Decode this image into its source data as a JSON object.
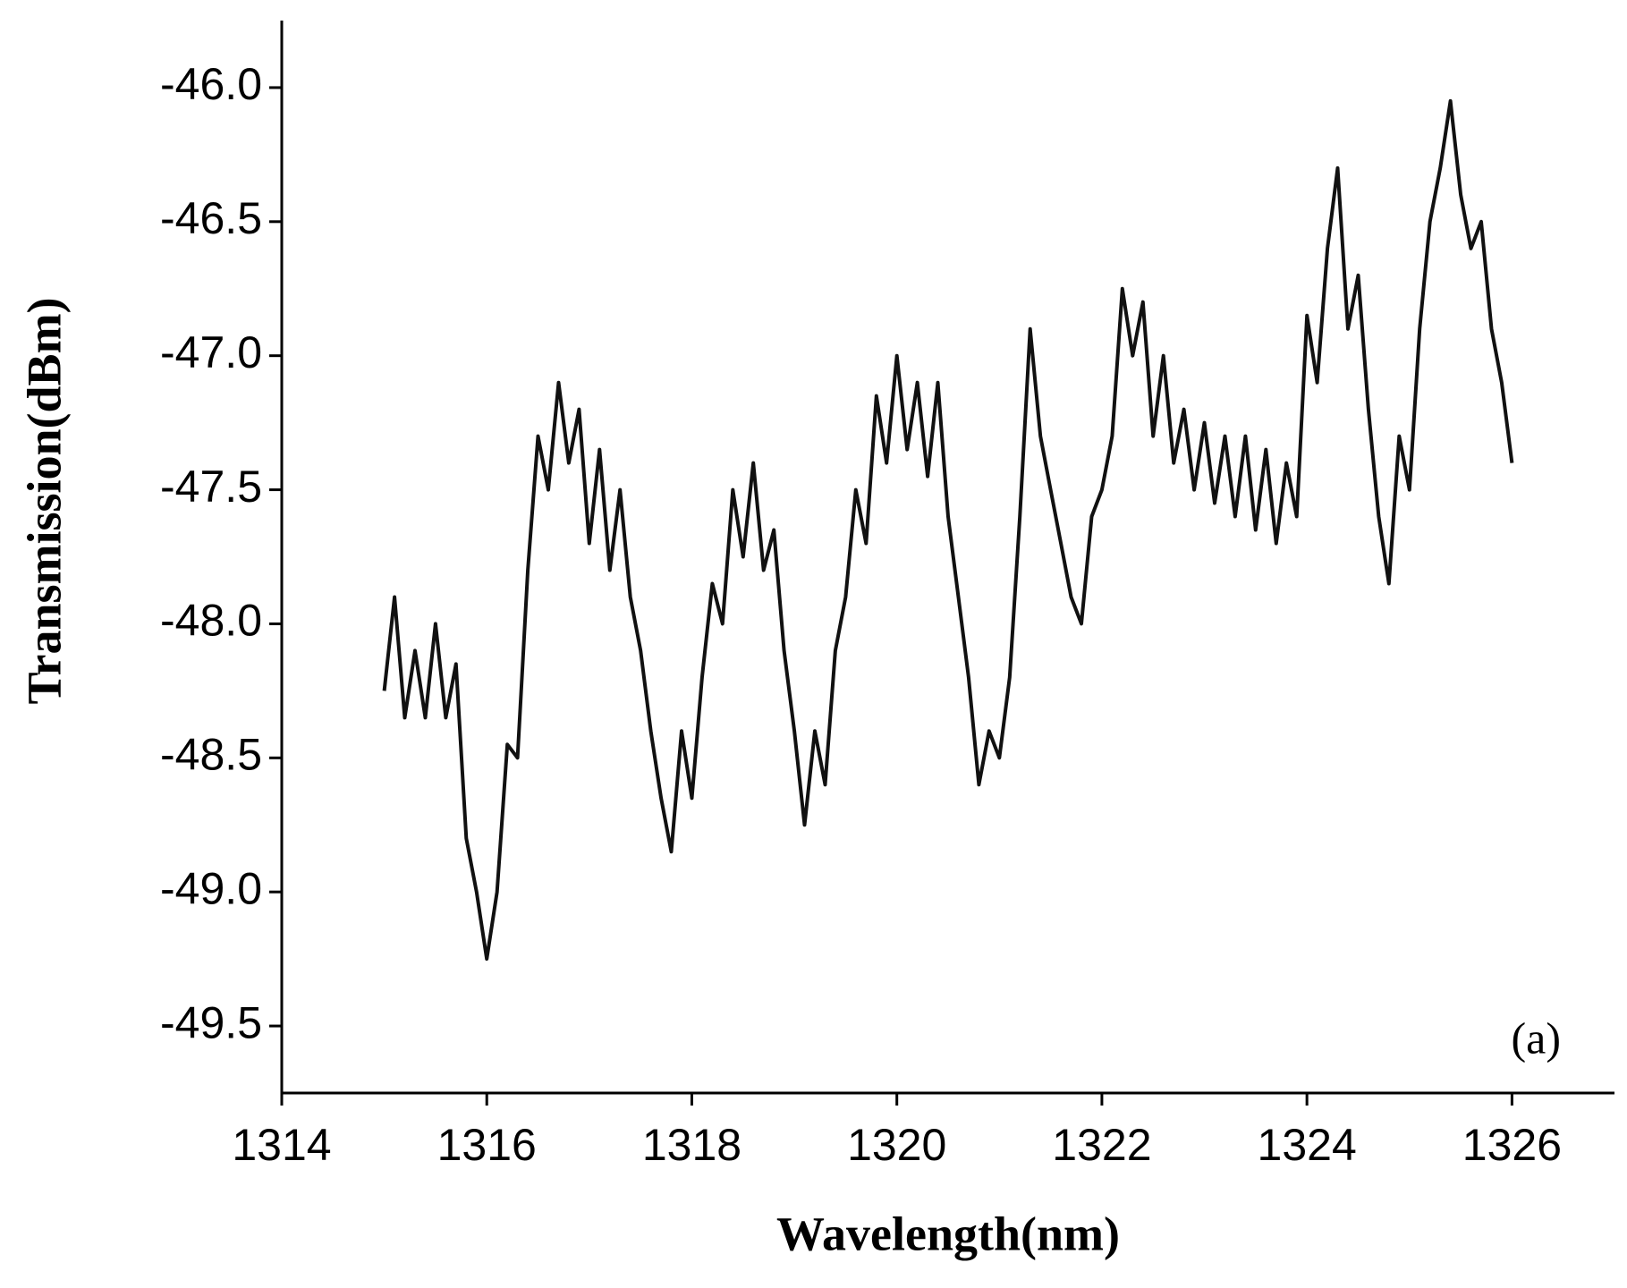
{
  "chart_data": {
    "type": "line",
    "xlabel": "Wavelength(nm)",
    "ylabel": "Transmission(dBm)",
    "annotation": "(a)",
    "color": "#111111",
    "xlim": [
      1314,
      1327
    ],
    "xticks": [
      1314,
      1316,
      1318,
      1320,
      1322,
      1324,
      1326
    ],
    "ylim": [
      -49.75,
      -45.75
    ],
    "yticks": [
      {
        "value": -49.5,
        "label": "-49.5"
      },
      {
        "value": -49.0,
        "label": "-49.0"
      },
      {
        "value": -48.5,
        "label": "-48.5"
      },
      {
        "value": -48.0,
        "label": "-48.0"
      },
      {
        "value": -47.5,
        "label": "-47.5"
      },
      {
        "value": -47.0,
        "label": "-47.0"
      },
      {
        "value": -46.5,
        "label": "-46.5"
      },
      {
        "value": -46.0,
        "label": "-46.0"
      }
    ],
    "x": [
      1315.0,
      1315.1,
      1315.2,
      1315.3,
      1315.4,
      1315.5,
      1315.6,
      1315.7,
      1315.8,
      1315.9,
      1316.0,
      1316.1,
      1316.2,
      1316.3,
      1316.4,
      1316.5,
      1316.6,
      1316.7,
      1316.8,
      1316.9,
      1317.0,
      1317.1,
      1317.2,
      1317.3,
      1317.4,
      1317.5,
      1317.6,
      1317.7,
      1317.8,
      1317.9,
      1318.0,
      1318.1,
      1318.2,
      1318.3,
      1318.4,
      1318.5,
      1318.6,
      1318.7,
      1318.8,
      1318.9,
      1319.0,
      1319.1,
      1319.2,
      1319.3,
      1319.4,
      1319.5,
      1319.6,
      1319.7,
      1319.8,
      1319.9,
      1320.0,
      1320.1,
      1320.2,
      1320.3,
      1320.4,
      1320.5,
      1320.6,
      1320.7,
      1320.8,
      1320.9,
      1321.0,
      1321.1,
      1321.2,
      1321.3,
      1321.4,
      1321.5,
      1321.6,
      1321.7,
      1321.8,
      1321.9,
      1322.0,
      1322.1,
      1322.2,
      1322.3,
      1322.4,
      1322.5,
      1322.6,
      1322.7,
      1322.8,
      1322.9,
      1323.0,
      1323.1,
      1323.2,
      1323.3,
      1323.4,
      1323.5,
      1323.6,
      1323.7,
      1323.8,
      1323.9,
      1324.0,
      1324.1,
      1324.2,
      1324.3,
      1324.4,
      1324.5,
      1324.6,
      1324.7,
      1324.8,
      1324.9,
      1325.0,
      1325.1,
      1325.2,
      1325.3,
      1325.4,
      1325.5,
      1325.6,
      1325.7,
      1325.8,
      1325.9,
      1326.0
    ],
    "values": [
      -48.25,
      -47.9,
      -48.35,
      -48.1,
      -48.35,
      -48.0,
      -48.35,
      -48.15,
      -48.8,
      -49.0,
      -49.25,
      -49.0,
      -48.45,
      -48.5,
      -47.8,
      -47.3,
      -47.5,
      -47.1,
      -47.4,
      -47.2,
      -47.7,
      -47.35,
      -47.8,
      -47.5,
      -47.9,
      -48.1,
      -48.4,
      -48.65,
      -48.85,
      -48.4,
      -48.65,
      -48.2,
      -47.85,
      -48.0,
      -47.5,
      -47.75,
      -47.4,
      -47.8,
      -47.65,
      -48.1,
      -48.4,
      -48.75,
      -48.4,
      -48.6,
      -48.1,
      -47.9,
      -47.5,
      -47.7,
      -47.15,
      -47.4,
      -47.0,
      -47.35,
      -47.1,
      -47.45,
      -47.1,
      -47.6,
      -47.9,
      -48.2,
      -48.6,
      -48.4,
      -48.5,
      -48.2,
      -47.6,
      -46.9,
      -47.3,
      -47.5,
      -47.7,
      -47.9,
      -48.0,
      -47.6,
      -47.5,
      -47.3,
      -46.75,
      -47.0,
      -46.8,
      -47.3,
      -47.0,
      -47.4,
      -47.2,
      -47.5,
      -47.25,
      -47.55,
      -47.3,
      -47.6,
      -47.3,
      -47.65,
      -47.35,
      -47.7,
      -47.4,
      -47.6,
      -46.85,
      -47.1,
      -46.6,
      -46.3,
      -46.9,
      -46.7,
      -47.2,
      -47.6,
      -47.85,
      -47.3,
      -47.5,
      -46.9,
      -46.5,
      -46.3,
      -46.05,
      -46.4,
      -46.6,
      -46.5,
      -46.9,
      -47.1,
      -47.4
    ]
  }
}
